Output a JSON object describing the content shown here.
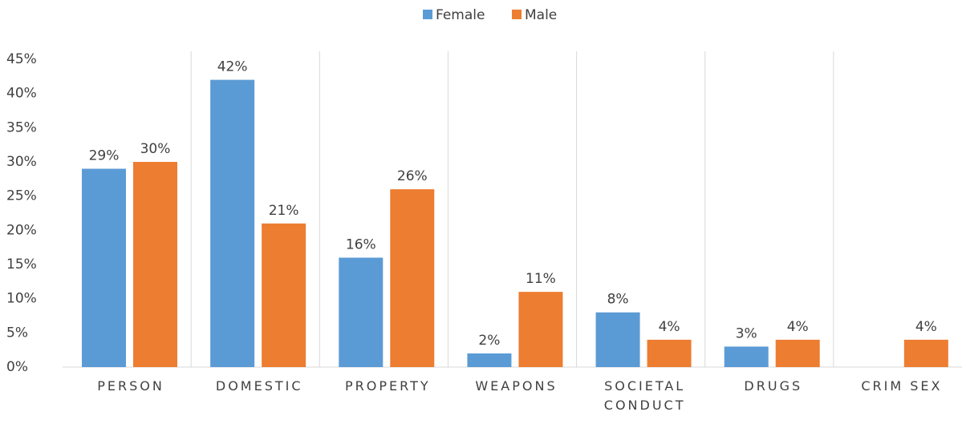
{
  "chart_data": {
    "type": "bar",
    "categories": [
      "PERSON",
      "DOMESTIC",
      "PROPERTY",
      "WEAPONS",
      "SOCIETAL CONDUCT",
      "DRUGS",
      "CRIM SEX"
    ],
    "series": [
      {
        "name": "Female",
        "color": "#5b9bd5",
        "values": [
          29,
          42,
          16,
          2,
          8,
          3,
          null
        ],
        "value_labels": [
          "29%",
          "42%",
          "16%",
          "2%",
          "8%",
          "3%",
          null
        ]
      },
      {
        "name": "Male",
        "color": "#ed7d31",
        "values": [
          30,
          21,
          26,
          11,
          4,
          4,
          4
        ],
        "value_labels": [
          "30%",
          "21%",
          "26%",
          "11%",
          "4%",
          "4%",
          "4%"
        ]
      }
    ],
    "ylim": [
      0,
      45
    ],
    "yticks": [
      {
        "value": 0,
        "label": "0%"
      },
      {
        "value": 5,
        "label": "5%"
      },
      {
        "value": 10,
        "label": "10%"
      },
      {
        "value": 15,
        "label": "15%"
      },
      {
        "value": 20,
        "label": "20%"
      },
      {
        "value": 25,
        "label": "25%"
      },
      {
        "value": 30,
        "label": "30%"
      },
      {
        "value": 35,
        "label": "35%"
      },
      {
        "value": 40,
        "label": "40%"
      },
      {
        "value": 45,
        "label": "45%"
      }
    ],
    "legend": "top"
  }
}
